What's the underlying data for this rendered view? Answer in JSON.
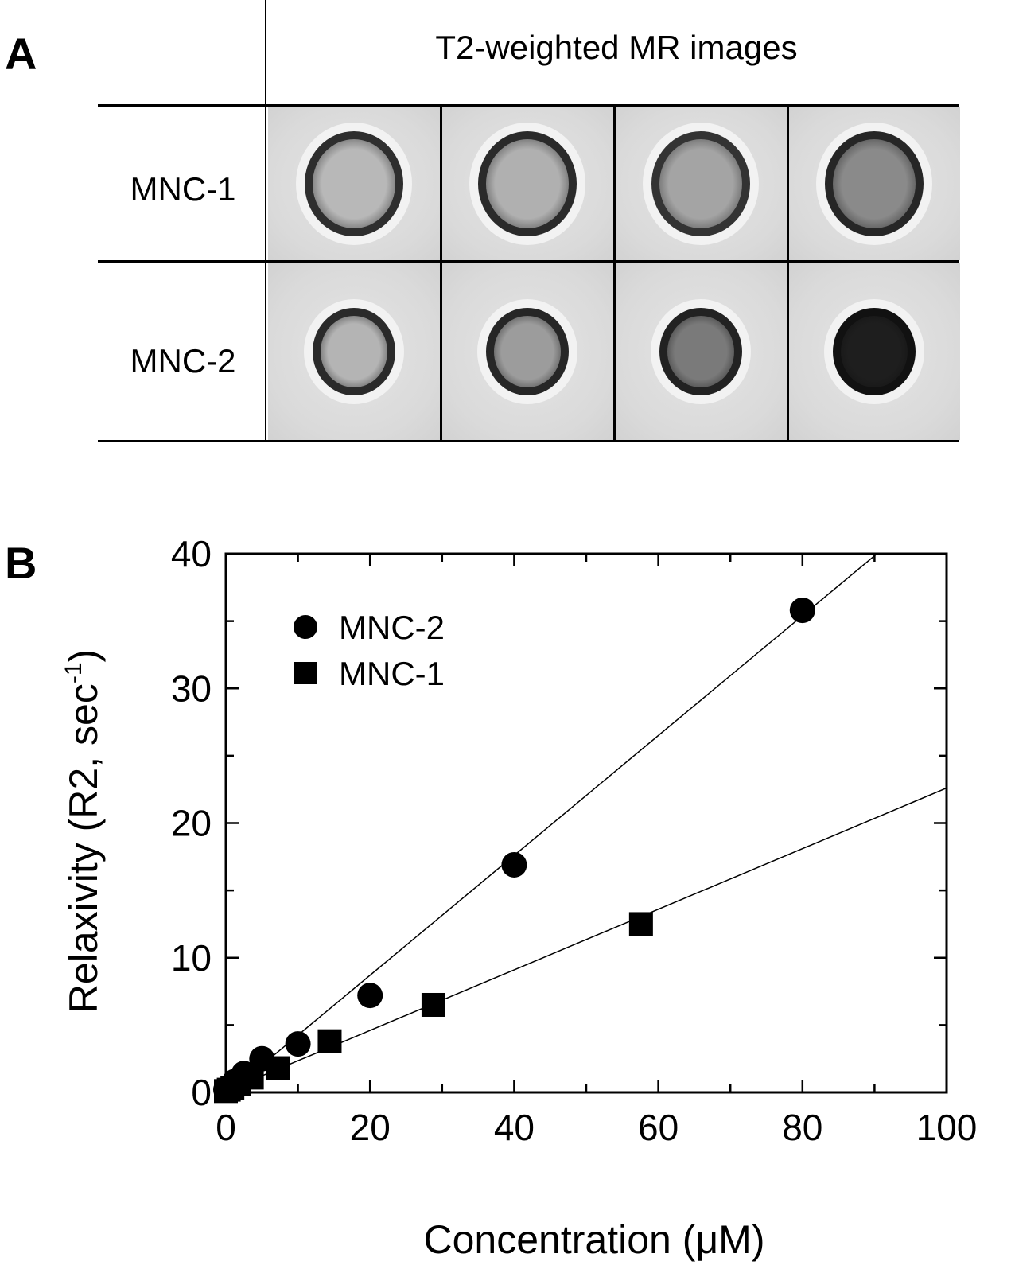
{
  "panel_a": {
    "label": "A",
    "column_header": "T2-weighted  MR images",
    "rows": [
      {
        "label": "MNC-1",
        "ring_colors": [
          "#2e2e2e",
          "#2a2a2a",
          "#333333",
          "#262626"
        ],
        "core_colors": [
          "#b8b8b8",
          "#b0b0b0",
          "#a4a4a4",
          "#8a8a8a"
        ]
      },
      {
        "label": "MNC-2",
        "ring_colors": [
          "#2a2a2a",
          "#262626",
          "#222222",
          "#111111"
        ],
        "core_colors": [
          "#b4b4b4",
          "#9c9c9c",
          "#7a7a7a",
          "#1e1e1e"
        ]
      }
    ]
  },
  "panel_b": {
    "label": "B"
  },
  "chart_data": {
    "type": "scatter",
    "xlabel": "Concentration (μM)",
    "ylabel_main": "Relaxivity (R2, sec",
    "ylabel_sup": "-1",
    "ylabel_close": ")",
    "xlim": [
      0,
      100
    ],
    "ylim": [
      0,
      40
    ],
    "x_ticks": [
      "0",
      "20",
      "40",
      "60",
      "80",
      "100"
    ],
    "y_ticks": [
      "0",
      "10",
      "20",
      "30",
      "40"
    ],
    "legend_position": "top-left",
    "series": [
      {
        "name": "MNC-2",
        "marker": "circle",
        "points": [
          [
            0,
            0.2
          ],
          [
            0.6,
            0.4
          ],
          [
            1.2,
            0.8
          ],
          [
            2.5,
            1.4
          ],
          [
            5,
            2.5
          ],
          [
            10,
            3.6
          ],
          [
            20,
            7.2
          ],
          [
            40,
            16.9
          ],
          [
            80,
            35.8
          ]
        ],
        "fit": {
          "slope": 0.445,
          "intercept": -0.2
        }
      },
      {
        "name": "MNC-1",
        "marker": "square",
        "points": [
          [
            0,
            0.1
          ],
          [
            0.4,
            0.2
          ],
          [
            0.9,
            0.3
          ],
          [
            1.8,
            0.6
          ],
          [
            3.6,
            1.1
          ],
          [
            7.2,
            1.8
          ],
          [
            14.4,
            3.8
          ],
          [
            28.8,
            6.5
          ],
          [
            57.6,
            12.5
          ]
        ],
        "fit": {
          "slope": 0.225,
          "intercept": 0.1
        }
      }
    ]
  }
}
